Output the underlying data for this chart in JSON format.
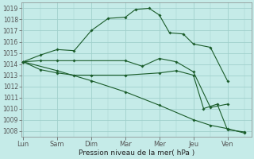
{
  "background_color": "#c5ebe8",
  "grid_color": "#a0d0cc",
  "line_color": "#1a5c2a",
  "xlabel": "Pression niveau de la mer( hPa )",
  "ylim": [
    1007.5,
    1019.5
  ],
  "yticks": [
    1008,
    1009,
    1010,
    1011,
    1012,
    1013,
    1014,
    1015,
    1016,
    1017,
    1018,
    1019
  ],
  "xtick_labels": [
    "Lun",
    "Sam",
    "Dim",
    "Mar",
    "Mer",
    "Jeu",
    "Ven"
  ],
  "xtick_positions": [
    0,
    1,
    2,
    3,
    4,
    5,
    6
  ],
  "xlim": [
    -0.05,
    6.7
  ],
  "series": [
    {
      "x": [
        0,
        0.5,
        1.0,
        1.5,
        2.0,
        2.5,
        3.0,
        3.3,
        3.7,
        4.0,
        4.3,
        4.7,
        5.0,
        5.5,
        6.0
      ],
      "y": [
        1014.2,
        1014.8,
        1015.3,
        1015.2,
        1017.0,
        1018.1,
        1018.2,
        1018.9,
        1019.0,
        1018.4,
        1016.8,
        1016.7,
        1015.8,
        1015.5,
        1012.5
      ]
    },
    {
      "x": [
        0,
        0.5,
        1.0,
        1.5,
        3.0,
        3.5,
        4.0,
        4.5,
        5.0,
        5.5,
        6.0
      ],
      "y": [
        1014.2,
        1014.3,
        1014.3,
        1014.3,
        1014.3,
        1013.8,
        1014.5,
        1014.2,
        1013.3,
        1010.1,
        1010.4
      ]
    },
    {
      "x": [
        0,
        1.0,
        2.0,
        3.0,
        4.0,
        5.0,
        5.5,
        6.0,
        6.5
      ],
      "y": [
        1014.2,
        1013.4,
        1012.5,
        1011.5,
        1010.3,
        1009.0,
        1008.5,
        1008.2,
        1007.8
      ]
    },
    {
      "x": [
        0,
        0.5,
        1.0,
        1.5,
        2.0,
        3.0,
        4.0,
        4.5,
        5.0,
        5.3,
        5.7,
        6.0,
        6.5
      ],
      "y": [
        1014.2,
        1013.5,
        1013.2,
        1013.0,
        1013.0,
        1013.0,
        1013.2,
        1013.4,
        1013.0,
        1010.0,
        1010.4,
        1008.1,
        1007.9
      ]
    }
  ]
}
